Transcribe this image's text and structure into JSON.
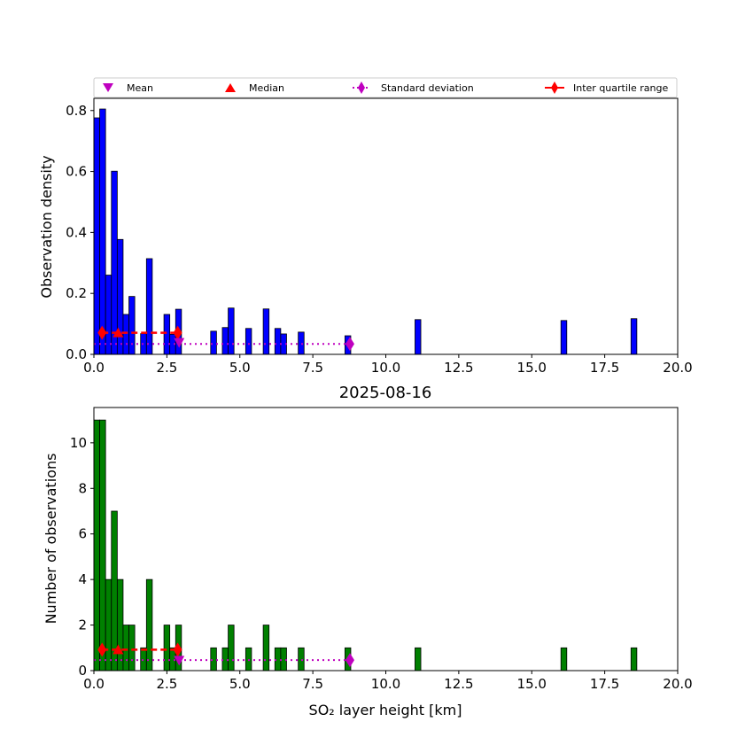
{
  "legend": {
    "items": [
      {
        "label": "Mean",
        "marker": "triangle-down",
        "color": "#bf00bf"
      },
      {
        "label": "Median",
        "marker": "triangle-up",
        "color": "#ff0000"
      },
      {
        "label": "Standard deviation",
        "marker": "diamond-dotted-line",
        "color": "#bf00bf"
      },
      {
        "label": "Inter quartile range",
        "marker": "diamond-solid-line",
        "color": "#ff0000"
      }
    ],
    "placement": "top (above upper panel)"
  },
  "chart_data": [
    {
      "type": "bar",
      "panel": "top",
      "title": "",
      "xlabel": "",
      "ylabel": "Observation density",
      "xlim": [
        0,
        20
      ],
      "ylim": [
        0,
        0.84
      ],
      "xticks": [
        "0.0",
        "2.5",
        "5.0",
        "7.5",
        "10.0",
        "12.5",
        "15.0",
        "17.5",
        "20.0"
      ],
      "xtick_values": [
        0,
        2.5,
        5,
        7.5,
        10,
        12.5,
        15,
        17.5,
        20
      ],
      "yticks": [
        "0.0",
        "0.2",
        "0.4",
        "0.6",
        "0.8"
      ],
      "ytick_values": [
        0,
        0.2,
        0.4,
        0.6,
        0.8
      ],
      "bar_color": "#0000ff",
      "bin_width": 0.2,
      "bins_left": [
        0.0,
        0.2,
        0.4,
        0.6,
        0.8,
        1.0,
        1.2,
        1.6,
        1.8,
        2.4,
        2.6,
        2.8,
        4.0,
        4.4,
        4.6,
        5.2,
        5.8,
        6.2,
        6.4,
        7.0,
        8.6,
        11.0,
        16.0,
        18.4
      ],
      "values": [
        0.776,
        0.805,
        0.26,
        0.601,
        0.377,
        0.131,
        0.19,
        0.068,
        0.314,
        0.131,
        0.066,
        0.148,
        0.076,
        0.088,
        0.152,
        0.085,
        0.149,
        0.085,
        0.067,
        0.073,
        0.061,
        0.114,
        0.111,
        0.117
      ],
      "statistics": {
        "mean": {
          "x": 2.92,
          "y": 0.039
        },
        "median": {
          "x": 0.83,
          "y": 0.071
        },
        "iqr": {
          "x": [
            0.28,
            2.87
          ],
          "y": 0.071
        },
        "std": {
          "x": [
            0.0,
            8.77
          ],
          "y": 0.034
        }
      }
    },
    {
      "type": "bar",
      "panel": "bottom",
      "title": "2025-08-16",
      "xlabel": "SO₂ layer height [km]",
      "ylabel": "Number of observations",
      "xlim": [
        0,
        20
      ],
      "ylim": [
        0,
        11.55
      ],
      "xticks": [
        "0.0",
        "2.5",
        "5.0",
        "7.5",
        "10.0",
        "12.5",
        "15.0",
        "17.5",
        "20.0"
      ],
      "xtick_values": [
        0,
        2.5,
        5,
        7.5,
        10,
        12.5,
        15,
        17.5,
        20
      ],
      "yticks": [
        "0",
        "2",
        "4",
        "6",
        "8",
        "10"
      ],
      "ytick_values": [
        0,
        2,
        4,
        6,
        8,
        10
      ],
      "bar_color": "#008000",
      "bin_width": 0.2,
      "bins_left": [
        0.0,
        0.2,
        0.4,
        0.6,
        0.8,
        1.0,
        1.2,
        1.6,
        1.8,
        2.4,
        2.6,
        2.8,
        4.0,
        4.4,
        4.6,
        5.2,
        5.8,
        6.2,
        6.4,
        7.0,
        8.6,
        11.0,
        16.0,
        18.4
      ],
      "values": [
        11,
        11,
        4,
        7,
        4,
        2,
        2,
        1,
        4,
        2,
        1,
        2,
        1,
        1,
        2,
        1,
        2,
        1,
        1,
        1,
        1,
        1,
        1,
        1
      ],
      "statistics": {
        "mean": {
          "x": 2.92,
          "y": 0.45
        },
        "median": {
          "x": 0.83,
          "y": 0.92
        },
        "iqr": {
          "x": [
            0.28,
            2.87
          ],
          "y": 0.92
        },
        "std": {
          "x": [
            0.0,
            8.77
          ],
          "y": 0.46
        }
      }
    }
  ]
}
